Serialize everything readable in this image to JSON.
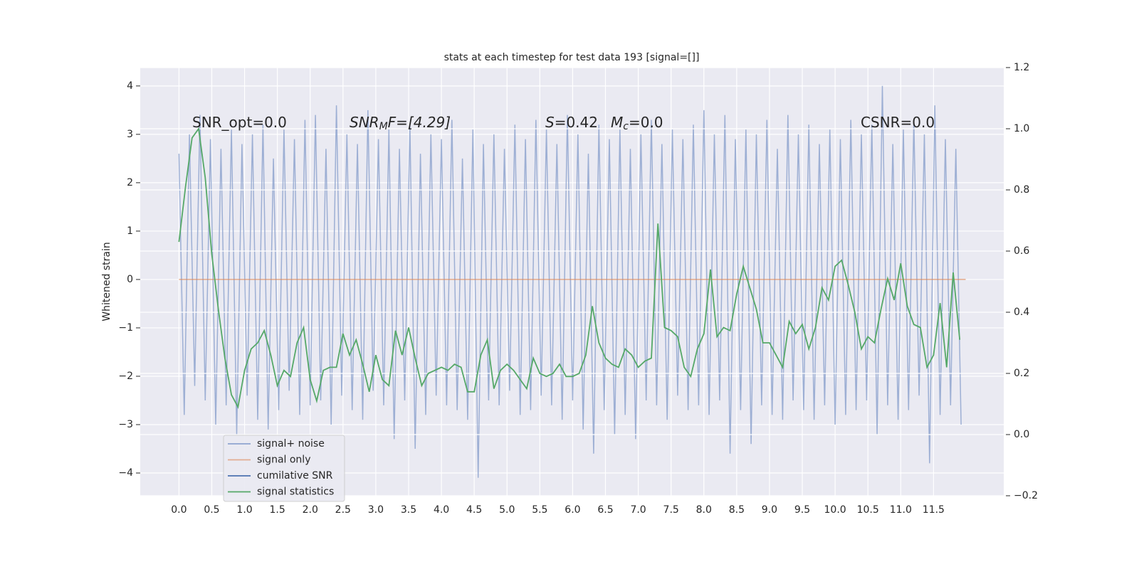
{
  "chart_data": {
    "type": "line",
    "title": "stats at each timestep for test data 193 [signal=[]]",
    "y_label": "Whitened strain",
    "xlim": [
      -0.59,
      12.57
    ],
    "ylim": [
      -4.47,
      4.38
    ],
    "y2lim": [
      -0.2,
      1.2
    ],
    "xticks": [
      {
        "value": 0,
        "label": "0.0"
      },
      {
        "value": 0.5,
        "label": "0.5"
      },
      {
        "value": 1,
        "label": "1.0"
      },
      {
        "value": 1.5,
        "label": "1.5"
      },
      {
        "value": 2,
        "label": "2.0"
      },
      {
        "value": 2.5,
        "label": "2.5"
      },
      {
        "value": 3,
        "label": "3.0"
      },
      {
        "value": 3.5,
        "label": "3.5"
      },
      {
        "value": 4,
        "label": "4.0"
      },
      {
        "value": 4.5,
        "label": "4.5"
      },
      {
        "value": 5,
        "label": "5.0"
      },
      {
        "value": 5.5,
        "label": "5.5"
      },
      {
        "value": 6,
        "label": "6.0"
      },
      {
        "value": 6.5,
        "label": "6.5"
      },
      {
        "value": 7,
        "label": "7.0"
      },
      {
        "value": 7.5,
        "label": "7.5"
      },
      {
        "value": 8,
        "label": "8.0"
      },
      {
        "value": 8.5,
        "label": "8.5"
      },
      {
        "value": 9,
        "label": "9.0"
      },
      {
        "value": 9.5,
        "label": "9.5"
      },
      {
        "value": 10,
        "label": "10.0"
      },
      {
        "value": 10.5,
        "label": "10.5"
      },
      {
        "value": 11,
        "label": "11.0"
      },
      {
        "value": 11.5,
        "label": "11.5"
      }
    ],
    "yticks": [
      {
        "value": -4,
        "label": "−4"
      },
      {
        "value": -3,
        "label": "−3"
      },
      {
        "value": -2,
        "label": "−2"
      },
      {
        "value": -1,
        "label": "−1"
      },
      0,
      1,
      2,
      3,
      4
    ],
    "y2ticks": [
      {
        "value": -0.2,
        "label": "−0.2"
      },
      {
        "value": 0,
        "label": "0.0"
      },
      {
        "value": 0.2,
        "label": "0.2"
      },
      {
        "value": 0.4,
        "label": "0.4"
      },
      {
        "value": 0.6,
        "label": "0.6"
      },
      {
        "value": 0.8,
        "label": "0.8"
      },
      {
        "value": 1,
        "label": "1.0"
      },
      {
        "value": 1.2,
        "label": "1.2"
      }
    ],
    "grid": true,
    "legend": "lower left",
    "annotations": [
      {
        "base": "SNR_opt=0.0"
      },
      {
        "base": "SNR",
        "sub": "M",
        "rest": "F=[4.29]"
      },
      {
        "base": "S",
        "rest": "=0.42"
      },
      {
        "base": "M",
        "sub": "c",
        "rest": "=0.0"
      },
      {
        "base": "CSNR=0.0"
      }
    ],
    "series": [
      {
        "name": "signal+ noise",
        "color": "#8fa4cf",
        "x": [
          0,
          0.08,
          0.16,
          0.24,
          0.32,
          0.4,
          0.48,
          0.56,
          0.64,
          0.72,
          0.8,
          0.88,
          0.96,
          1.04,
          1.12,
          1.2,
          1.28,
          1.36,
          1.44,
          1.52,
          1.6,
          1.68,
          1.76,
          1.84,
          1.92,
          2,
          2.08,
          2.16,
          2.24,
          2.32,
          2.4,
          2.48,
          2.56,
          2.64,
          2.72,
          2.8,
          2.88,
          2.96,
          3.04,
          3.12,
          3.2,
          3.28,
          3.36,
          3.44,
          3.52,
          3.6,
          3.68,
          3.76,
          3.84,
          3.92,
          4,
          4.08,
          4.16,
          4.24,
          4.32,
          4.4,
          4.48,
          4.56,
          4.64,
          4.72,
          4.8,
          4.88,
          4.96,
          5.04,
          5.12,
          5.2,
          5.28,
          5.36,
          5.44,
          5.52,
          5.6,
          5.68,
          5.76,
          5.84,
          5.92,
          6,
          6.08,
          6.16,
          6.24,
          6.32,
          6.4,
          6.48,
          6.56,
          6.64,
          6.72,
          6.8,
          6.88,
          6.96,
          7.04,
          7.12,
          7.2,
          7.28,
          7.36,
          7.44,
          7.52,
          7.6,
          7.68,
          7.76,
          7.84,
          7.92,
          8,
          8.08,
          8.16,
          8.24,
          8.32,
          8.4,
          8.48,
          8.56,
          8.64,
          8.72,
          8.8,
          8.88,
          8.96,
          9.04,
          9.12,
          9.2,
          9.28,
          9.36,
          9.44,
          9.52,
          9.6,
          9.68,
          9.76,
          9.84,
          9.92,
          10,
          10.08,
          10.16,
          10.24,
          10.32,
          10.4,
          10.48,
          10.56,
          10.64,
          10.72,
          10.8,
          10.88,
          10.96,
          11.04,
          11.12,
          11.2,
          11.28,
          11.36,
          11.44,
          11.52,
          11.6,
          11.68,
          11.76,
          11.84,
          11.92
        ],
        "values": [
          2.6,
          -2.8,
          3.0,
          -2.2,
          3.4,
          -2.5,
          2.9,
          -3.0,
          2.7,
          -2.6,
          3.1,
          -3.2,
          2.8,
          -2.4,
          3.0,
          -2.9,
          3.2,
          -3.1,
          2.5,
          -2.7,
          3.1,
          -2.3,
          2.9,
          -2.8,
          3.3,
          -2.6,
          3.4,
          -2.5,
          2.7,
          -3.0,
          3.6,
          -2.4,
          3.0,
          -2.7,
          2.8,
          -2.9,
          3.5,
          -2.3,
          2.9,
          -2.6,
          3.1,
          -3.3,
          2.7,
          -2.5,
          3.2,
          -3.5,
          2.6,
          -2.8,
          3.0,
          -2.4,
          2.9,
          -2.6,
          3.3,
          -2.7,
          2.5,
          -2.9,
          3.1,
          -4.1,
          2.8,
          -2.5,
          3.0,
          -2.6,
          2.7,
          -2.3,
          3.2,
          -2.8,
          2.9,
          -2.7,
          3.3,
          -2.4,
          3.1,
          -2.6,
          2.8,
          -2.9,
          3.4,
          -2.5,
          3.0,
          -3.1,
          2.6,
          -3.6,
          3.2,
          -2.7,
          2.9,
          -3.2,
          3.1,
          -2.8,
          2.7,
          -3.3,
          3.0,
          -2.5,
          3.3,
          -2.6,
          2.8,
          -2.9,
          3.1,
          -2.4,
          2.9,
          -2.7,
          3.2,
          -2.6,
          3.5,
          -2.8,
          3.0,
          -2.5,
          3.4,
          -3.6,
          2.9,
          -2.7,
          3.1,
          -3.4,
          3.0,
          -2.6,
          3.3,
          -2.8,
          2.7,
          -2.9,
          3.4,
          -2.5,
          3.0,
          -2.7,
          3.2,
          -2.9,
          2.8,
          -2.6,
          3.1,
          -3.0,
          2.9,
          -2.8,
          3.3,
          -2.7,
          3.0,
          -2.5,
          3.2,
          -3.2,
          4.0,
          -2.6,
          2.8,
          -2.9,
          3.1,
          -2.7,
          3.3,
          -2.4,
          3.0,
          -3.8,
          3.6,
          -2.8,
          2.9,
          -2.6,
          2.7,
          -3.0
        ]
      },
      {
        "name": "signal only",
        "color": "#dd8452",
        "x": [
          0,
          11.99
        ],
        "values": [
          0,
          0
        ]
      },
      {
        "name": "cumilative SNR",
        "color": "#4c72b0",
        "x": [],
        "values": []
      },
      {
        "name": "signal statistics",
        "color": "#55a868",
        "axis": "y2",
        "x": [
          0,
          0.1,
          0.2,
          0.3,
          0.4,
          0.5,
          0.6,
          0.7,
          0.8,
          0.9,
          1,
          1.1,
          1.2,
          1.3,
          1.4,
          1.5,
          1.6,
          1.7,
          1.8,
          1.9,
          2,
          2.1,
          2.2,
          2.3,
          2.4,
          2.5,
          2.6,
          2.7,
          2.8,
          2.9,
          3,
          3.1,
          3.2,
          3.3,
          3.4,
          3.5,
          3.6,
          3.7,
          3.8,
          3.9,
          4,
          4.1,
          4.2,
          4.3,
          4.4,
          4.5,
          4.6,
          4.7,
          4.8,
          4.9,
          5,
          5.1,
          5.2,
          5.3,
          5.4,
          5.5,
          5.6,
          5.7,
          5.8,
          5.9,
          6,
          6.1,
          6.2,
          6.3,
          6.4,
          6.5,
          6.6,
          6.7,
          6.8,
          6.9,
          7,
          7.1,
          7.2,
          7.3,
          7.4,
          7.5,
          7.6,
          7.7,
          7.8,
          7.9,
          8,
          8.1,
          8.2,
          8.3,
          8.4,
          8.5,
          8.6,
          8.7,
          8.8,
          8.9,
          9,
          9.1,
          9.2,
          9.3,
          9.4,
          9.5,
          9.6,
          9.7,
          9.8,
          9.9,
          10,
          10.1,
          10.2,
          10.3,
          10.4,
          10.5,
          10.6,
          10.7,
          10.8,
          10.9,
          11,
          11.1,
          11.2,
          11.3,
          11.4,
          11.5,
          11.6,
          11.7,
          11.8,
          11.9
        ],
        "values": [
          0.63,
          0.81,
          0.97,
          1.0,
          0.84,
          0.59,
          0.41,
          0.25,
          0.13,
          0.09,
          0.21,
          0.28,
          0.3,
          0.34,
          0.26,
          0.16,
          0.21,
          0.19,
          0.3,
          0.35,
          0.18,
          0.11,
          0.21,
          0.22,
          0.22,
          0.33,
          0.26,
          0.31,
          0.23,
          0.14,
          0.26,
          0.18,
          0.16,
          0.34,
          0.26,
          0.35,
          0.25,
          0.16,
          0.2,
          0.21,
          0.22,
          0.21,
          0.23,
          0.22,
          0.14,
          0.14,
          0.26,
          0.31,
          0.15,
          0.21,
          0.23,
          0.21,
          0.18,
          0.15,
          0.25,
          0.2,
          0.19,
          0.2,
          0.23,
          0.19,
          0.19,
          0.2,
          0.26,
          0.42,
          0.3,
          0.25,
          0.23,
          0.22,
          0.28,
          0.26,
          0.22,
          0.24,
          0.25,
          0.69,
          0.35,
          0.34,
          0.32,
          0.22,
          0.19,
          0.28,
          0.33,
          0.54,
          0.32,
          0.35,
          0.34,
          0.46,
          0.55,
          0.48,
          0.41,
          0.3,
          0.3,
          0.26,
          0.22,
          0.37,
          0.33,
          0.36,
          0.28,
          0.35,
          0.48,
          0.44,
          0.55,
          0.57,
          0.49,
          0.4,
          0.28,
          0.32,
          0.3,
          0.41,
          0.51,
          0.44,
          0.56,
          0.42,
          0.36,
          0.35,
          0.22,
          0.26,
          0.43,
          0.22,
          0.53,
          0.31
        ]
      }
    ]
  }
}
